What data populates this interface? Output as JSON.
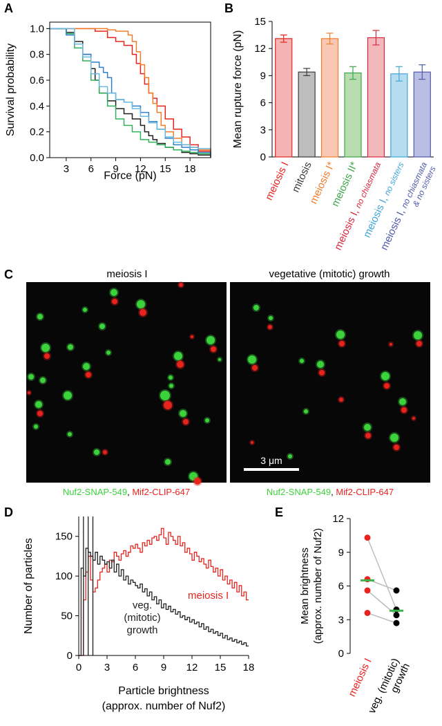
{
  "panels": {
    "A": {
      "label": "A"
    },
    "B": {
      "label": "B"
    },
    "C": {
      "label": "C",
      "left_title": "meiosis I",
      "right_title": "vegetative (mitotic) growth",
      "caption_green": "Nuf2-SNAP-549",
      "caption_sep": ", ",
      "caption_red": "Mif2-CLIP-647",
      "scalebar_label": "3 μm",
      "colors": {
        "green": "#3cd23c",
        "red": "#e8231e",
        "background": "#070707"
      }
    },
    "D": {
      "label": "D"
    },
    "E": {
      "label": "E"
    }
  },
  "chart_data": [
    {
      "panel": "A",
      "type": "line",
      "step": true,
      "xlabel": "Force (pN)",
      "ylabel": "Survival probability",
      "xlim": [
        1,
        20.5
      ],
      "ylim": [
        0,
        1.05
      ],
      "xticks": [
        3,
        6,
        9,
        12,
        15,
        18
      ],
      "yticks": [
        0.0,
        0.2,
        0.4,
        0.6,
        0.8,
        1.0
      ],
      "series": [
        {
          "color": "#e8231e",
          "x": [
            1,
            5,
            6.5,
            8,
            9,
            10,
            11,
            11.5,
            12,
            12.5,
            13,
            13.5,
            14,
            15,
            16,
            17,
            18,
            19,
            20.5
          ],
          "y": [
            1,
            1,
            0.98,
            0.93,
            0.9,
            0.87,
            0.8,
            0.73,
            0.65,
            0.57,
            0.5,
            0.46,
            0.4,
            0.3,
            0.22,
            0.16,
            0.1,
            0.05,
            0.02
          ]
        },
        {
          "color": "#f07d2a",
          "x": [
            1,
            7,
            8,
            9,
            10,
            10.5,
            11,
            11.5,
            12,
            12.5,
            13,
            13.5,
            14,
            14.5,
            15,
            16,
            17,
            18,
            19,
            20.5
          ],
          "y": [
            1,
            1,
            0.99,
            0.98,
            0.98,
            0.95,
            0.9,
            0.82,
            0.72,
            0.62,
            0.5,
            0.42,
            0.35,
            0.25,
            0.2,
            0.15,
            0.1,
            0.08,
            0.06,
            0.03
          ]
        },
        {
          "color": "#1f1f1f",
          "x": [
            1,
            3,
            4,
            5,
            6,
            6.5,
            7,
            8,
            9,
            10,
            11,
            12,
            12.5,
            13,
            13.5,
            14,
            15,
            16,
            17,
            18,
            19,
            20.5
          ],
          "y": [
            1,
            0.97,
            0.9,
            0.8,
            0.69,
            0.6,
            0.5,
            0.44,
            0.38,
            0.34,
            0.3,
            0.25,
            0.2,
            0.17,
            0.14,
            0.11,
            0.08,
            0.06,
            0.04,
            0.03,
            0.02,
            0.0
          ]
        },
        {
          "color": "#2eb15a",
          "x": [
            1,
            3,
            4,
            5,
            6,
            7,
            8,
            9,
            10,
            11,
            12,
            13,
            14,
            15,
            16,
            17,
            18,
            19,
            20.5
          ],
          "y": [
            1,
            0.96,
            0.85,
            0.75,
            0.6,
            0.5,
            0.4,
            0.3,
            0.25,
            0.2,
            0.14,
            0.12,
            0.1,
            0.08,
            0.06,
            0.05,
            0.04,
            0.03,
            0.02
          ]
        },
        {
          "color": "#2f80c8",
          "x": [
            1,
            3,
            4,
            5,
            6,
            7,
            7.5,
            8,
            8.5,
            9,
            10,
            11,
            12,
            13,
            14,
            15,
            16,
            17,
            18,
            19,
            20.5
          ],
          "y": [
            1,
            0.95,
            0.88,
            0.8,
            0.74,
            0.7,
            0.66,
            0.62,
            0.5,
            0.45,
            0.43,
            0.4,
            0.35,
            0.28,
            0.22,
            0.15,
            0.1,
            0.08,
            0.06,
            0.04,
            0.02
          ]
        },
        {
          "color": "#67b9e0",
          "x": [
            1,
            4,
            5,
            6,
            7,
            8,
            9,
            10,
            11,
            12,
            13,
            14,
            15,
            16,
            17,
            18,
            19,
            20.5
          ],
          "y": [
            1,
            0.88,
            0.78,
            0.65,
            0.55,
            0.5,
            0.45,
            0.43,
            0.38,
            0.32,
            0.27,
            0.22,
            0.16,
            0.12,
            0.1,
            0.08,
            0.07,
            0.06
          ]
        }
      ]
    },
    {
      "panel": "B",
      "type": "bar",
      "ylabel": "Mean rupture force (pN)",
      "ylim": [
        0,
        15
      ],
      "yticks": [
        0,
        3,
        6,
        9,
        12,
        15
      ],
      "categories": [
        {
          "main": "meiosis I",
          "sub": "",
          "sub2": ""
        },
        {
          "main": "mitosis",
          "sub": "",
          "sub2": ""
        },
        {
          "main": "meiosis I*",
          "sub": "",
          "sub2": ""
        },
        {
          "main": "meiosis II*",
          "sub": "",
          "sub2": ""
        },
        {
          "main": "meiosis I, ",
          "sub": "no chiasmata",
          "sub2": ""
        },
        {
          "main": "meiosis I, ",
          "sub": "no sisters",
          "sub2": ""
        },
        {
          "main": "meiosis I, ",
          "sub": "no chiasmata",
          "sub2": "& no sisters"
        }
      ],
      "values": [
        13.1,
        9.4,
        13.1,
        9.3,
        13.2,
        9.2,
        9.4
      ],
      "errors": [
        0.4,
        0.4,
        0.6,
        0.7,
        0.8,
        0.8,
        0.8
      ],
      "edge_colors": [
        "#e8231e",
        "#3a3a3a",
        "#f07d2a",
        "#3aa64a",
        "#d8283e",
        "#3fa6d8",
        "#4f5aa8"
      ],
      "fill_colors": [
        "#f5b4b4",
        "#bdbdbd",
        "#f8c8b4",
        "#b8dcb0",
        "#f3b8bc",
        "#b6dcef",
        "#b8bfe2"
      ]
    },
    {
      "panel": "D",
      "type": "line",
      "step": true,
      "xlabel": "Particle brightness",
      "xlabel2": "(approx. number of Nuf2)",
      "ylabel": "Number of particles",
      "xlim": [
        0,
        18
      ],
      "ylim": [
        0,
        175
      ],
      "xticks": [
        0,
        3,
        6,
        9,
        12,
        15,
        18
      ],
      "yticks": [
        0,
        50,
        100,
        150
      ],
      "bin_width": 0.25,
      "series": [
        {
          "name": "meiosis I",
          "color": "#e8231e",
          "values": [
            0,
            0,
            70,
            105,
            125,
            95,
            80,
            85,
            95,
            105,
            110,
            115,
            105,
            120,
            118,
            130,
            125,
            120,
            128,
            132,
            125,
            130,
            138,
            135,
            140,
            135,
            130,
            142,
            138,
            145,
            140,
            148,
            150,
            145,
            152,
            160,
            148,
            140,
            155,
            150,
            145,
            140,
            150,
            138,
            142,
            130,
            135,
            128,
            120,
            130,
            125,
            118,
            122,
            115,
            110,
            120,
            112,
            105,
            110,
            100,
            108,
            95,
            100,
            90,
            95,
            85,
            92,
            80,
            88,
            75,
            80,
            70,
            78,
            65,
            72,
            60,
            66,
            55,
            62,
            50,
            56,
            45,
            50,
            40,
            46,
            38,
            42,
            35,
            38,
            30,
            34,
            28,
            32,
            26,
            30,
            24,
            28,
            22,
            26,
            20,
            24,
            20,
            24,
            18,
            22,
            18,
            20,
            16
          ]
        },
        {
          "name": "veg. (mitotic) growth",
          "color": "#1f1f1f",
          "values": [
            0,
            110,
            100,
            135,
            130,
            125,
            120,
            130,
            115,
            125,
            120,
            115,
            118,
            110,
            120,
            105,
            115,
            100,
            108,
            95,
            100,
            90,
            95,
            92,
            88,
            85,
            90,
            80,
            84,
            75,
            80,
            70,
            74,
            65,
            70,
            60,
            65,
            58,
            62,
            55,
            58,
            52,
            55,
            48,
            50,
            45,
            48,
            42,
            45,
            40,
            42,
            36,
            40,
            33,
            36,
            30,
            33,
            28,
            30,
            25,
            28,
            22,
            25,
            20,
            22,
            18,
            20,
            16,
            18,
            14,
            16,
            12,
            14,
            11,
            12,
            10,
            11,
            9,
            10,
            8,
            9,
            7,
            8,
            6,
            7,
            6,
            6,
            5,
            5,
            5,
            4,
            4,
            4,
            3,
            3,
            3,
            3,
            2,
            2,
            2,
            2,
            2,
            2,
            2,
            1,
            1,
            1,
            1
          ]
        }
      ],
      "spikes": [
        {
          "x": 0.5,
          "color": "#1f1f1f"
        },
        {
          "x": 1.0,
          "color": "#1f1f1f"
        },
        {
          "x": 1.5,
          "color": "#1f1f1f"
        }
      ]
    },
    {
      "panel": "E",
      "type": "scatter",
      "ylabel": "Mean brightness",
      "ylabel2": "(approx. number of Nuf2)",
      "ylim": [
        0,
        12
      ],
      "yticks": [
        0,
        3,
        6,
        9,
        12
      ],
      "categories": [
        "meiosis I",
        "veg. (mitotic)",
        "growth"
      ],
      "category_colors": [
        "#e8231e",
        "#000000"
      ],
      "pairs": [
        [
          10.3,
          3.9
        ],
        [
          6.6,
          5.6
        ],
        [
          5.6,
          3.4
        ],
        [
          3.6,
          2.7
        ]
      ],
      "means": [
        6.5,
        3.8
      ],
      "point_colors": [
        "#e8231e",
        "#000000"
      ],
      "mean_color": "#3cb44b",
      "line_color": "#bdbdbd"
    }
  ]
}
